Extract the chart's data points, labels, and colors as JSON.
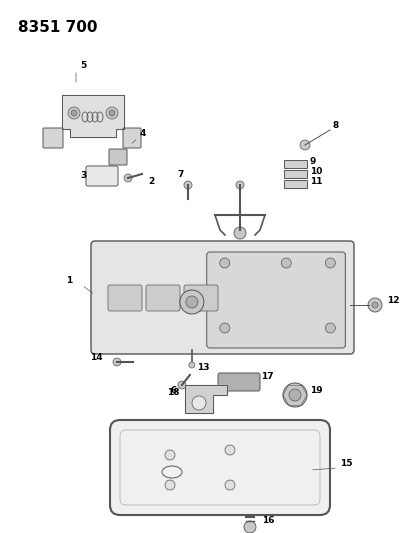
{
  "title": "8351 700",
  "bg": "#ffffff",
  "fg": "#000000",
  "gray": "#555555",
  "lgray": "#aaaaaa",
  "figsize": [
    4.1,
    5.33
  ],
  "dpi": 100,
  "label_fs": 6.5,
  "label_fw": "bold",
  "title_fs": 11,
  "title_fw": "bold"
}
